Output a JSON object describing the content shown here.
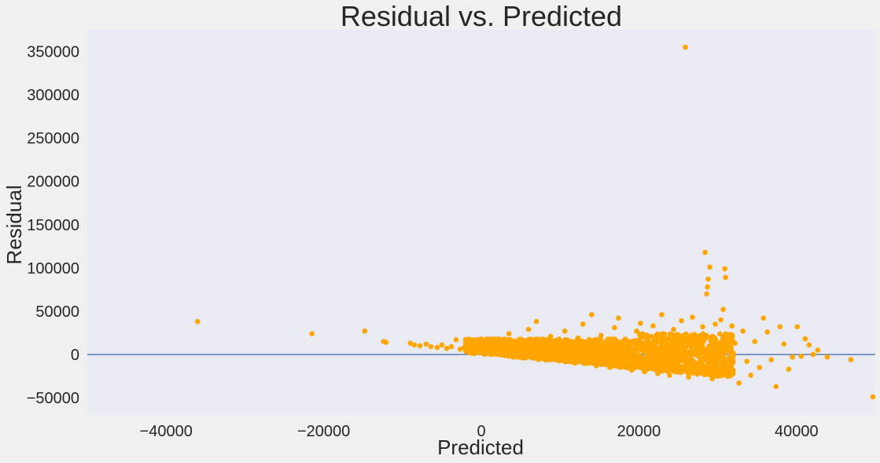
{
  "chart_data": {
    "type": "scatter",
    "title": "Residual vs. Predicted",
    "xlabel": "Predicted",
    "ylabel": "Residual",
    "xlim": [
      -50000,
      50000
    ],
    "ylim": [
      -70000,
      375000
    ],
    "x_ticks": [
      -40000,
      -20000,
      0,
      20000,
      40000
    ],
    "y_ticks": [
      -50000,
      0,
      50000,
      100000,
      150000,
      200000,
      250000,
      300000,
      350000
    ],
    "grid": false,
    "reference_line": {
      "y": 0,
      "color": "#4c72b0"
    },
    "point_color": "#ffa500",
    "background_color": "#eaeaf2",
    "points": [
      [
        -36000,
        38000
      ],
      [
        -21500,
        24000
      ],
      [
        -14800,
        27000
      ],
      [
        -12400,
        15000
      ],
      [
        -12100,
        14000
      ],
      [
        -9000,
        13000
      ],
      [
        -8500,
        11000
      ],
      [
        -7800,
        10000
      ],
      [
        -7000,
        12000
      ],
      [
        -6400,
        9000
      ],
      [
        -5600,
        8000
      ],
      [
        -5000,
        11000
      ],
      [
        -4400,
        7000
      ],
      [
        -3800,
        9000
      ],
      [
        -3200,
        17000
      ],
      [
        -2700,
        6000
      ],
      [
        -2200,
        8000
      ],
      [
        -1600,
        5000
      ],
      [
        -1000,
        11000
      ],
      [
        -500,
        4000
      ],
      [
        0,
        7000
      ],
      [
        600,
        12000
      ],
      [
        1200,
        3000
      ],
      [
        1800,
        9000
      ],
      [
        2400,
        1000
      ],
      [
        3000,
        6000
      ],
      [
        3500,
        24000
      ],
      [
        4200,
        -1000
      ],
      [
        4800,
        16000
      ],
      [
        5400,
        2000
      ],
      [
        6000,
        29000
      ],
      [
        6500,
        -3000
      ],
      [
        7000,
        38000
      ],
      [
        7600,
        13000
      ],
      [
        8200,
        -5000
      ],
      [
        8800,
        21000
      ],
      [
        9400,
        1000
      ],
      [
        10000,
        -7000
      ],
      [
        10600,
        27000
      ],
      [
        11200,
        11000
      ],
      [
        11800,
        -9000
      ],
      [
        12300,
        19000
      ],
      [
        12900,
        35000
      ],
      [
        13400,
        -4000
      ],
      [
        14000,
        46000
      ],
      [
        14600,
        -13000
      ],
      [
        15200,
        22000
      ],
      [
        15800,
        5000
      ],
      [
        16300,
        -15000
      ],
      [
        16900,
        31000
      ],
      [
        17400,
        42000
      ],
      [
        18000,
        -11000
      ],
      [
        18500,
        15000
      ],
      [
        19100,
        -18000
      ],
      [
        19700,
        27000
      ],
      [
        20200,
        36000
      ],
      [
        20700,
        -20000
      ],
      [
        21300,
        8000
      ],
      [
        21800,
        33000
      ],
      [
        22400,
        -22000
      ],
      [
        22900,
        46000
      ],
      [
        23400,
        12000
      ],
      [
        23900,
        -24000
      ],
      [
        24400,
        29000
      ],
      [
        24900,
        -3000
      ],
      [
        25400,
        39000
      ],
      [
        25900,
        355000
      ],
      [
        26300,
        -26000
      ],
      [
        26800,
        43000
      ],
      [
        27200,
        17000
      ],
      [
        27700,
        -21000
      ],
      [
        28100,
        32000
      ],
      [
        28400,
        118000
      ],
      [
        28600,
        70000
      ],
      [
        28700,
        78000
      ],
      [
        28800,
        87000
      ],
      [
        29000,
        101000
      ],
      [
        29300,
        -28000
      ],
      [
        29700,
        35000
      ],
      [
        30100,
        8000
      ],
      [
        30400,
        40000
      ],
      [
        30700,
        52000
      ],
      [
        30900,
        99000
      ],
      [
        31000,
        89000
      ],
      [
        31300,
        -22000
      ],
      [
        31800,
        33000
      ],
      [
        32200,
        13000
      ],
      [
        32700,
        -33000
      ],
      [
        33200,
        27000
      ],
      [
        33700,
        -8000
      ],
      [
        34200,
        -24000
      ],
      [
        34700,
        15000
      ],
      [
        35300,
        -15000
      ],
      [
        35800,
        42000
      ],
      [
        36300,
        26000
      ],
      [
        36800,
        -6000
      ],
      [
        37400,
        -37000
      ],
      [
        37900,
        32000
      ],
      [
        38400,
        12000
      ],
      [
        39000,
        -17000
      ],
      [
        39500,
        -3000
      ],
      [
        40100,
        32000
      ],
      [
        40600,
        -2000
      ],
      [
        41100,
        18000
      ],
      [
        41600,
        11000
      ],
      [
        42100,
        0
      ],
      [
        42700,
        5000
      ],
      [
        43900,
        -3000
      ],
      [
        46900,
        -6000
      ],
      [
        49700,
        -49000
      ]
    ]
  }
}
